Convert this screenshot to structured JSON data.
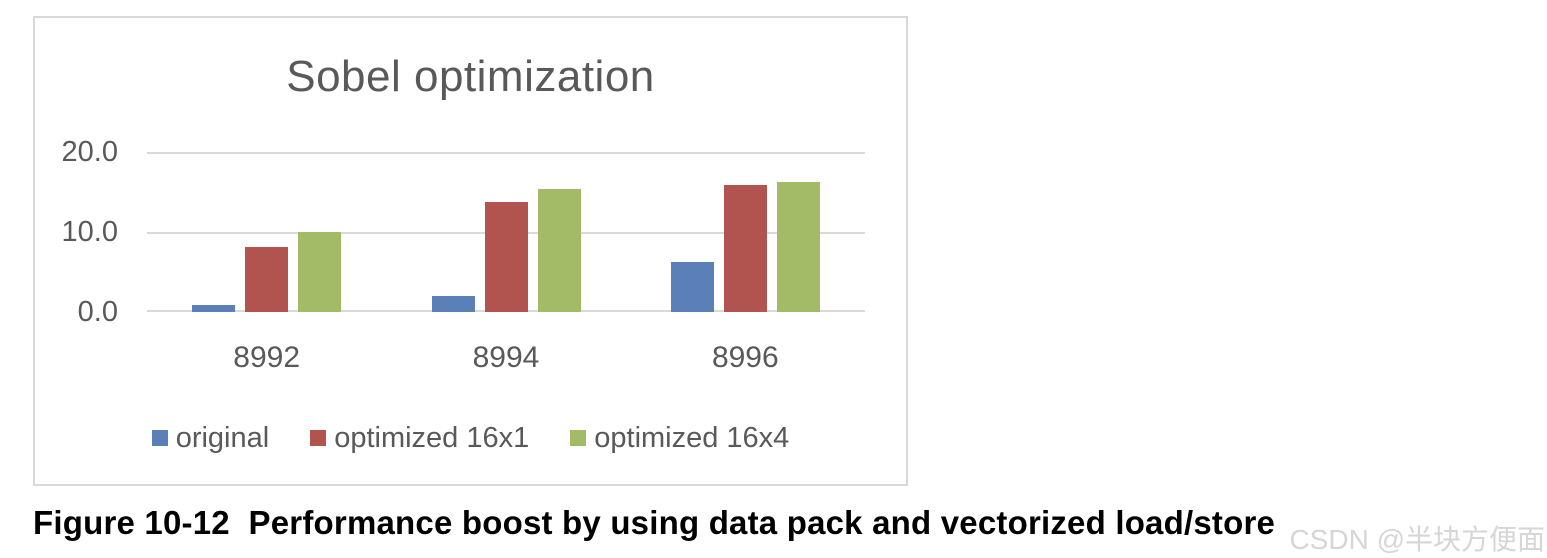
{
  "chart_data": {
    "type": "bar",
    "title": "Sobel optimization",
    "categories": [
      "8992",
      "8994",
      "8996"
    ],
    "series": [
      {
        "name": "original",
        "color": "#5b80b8",
        "values": [
          0.9,
          2.0,
          6.2
        ]
      },
      {
        "name": "optimized 16x1",
        "color": "#b1534e",
        "values": [
          8.1,
          13.8,
          15.9
        ]
      },
      {
        "name": "optimized 16x4",
        "color": "#a3ba66",
        "values": [
          10.0,
          15.4,
          16.3
        ]
      }
    ],
    "ylim": [
      0,
      20
    ],
    "yticks": [
      "20.0",
      "10.0",
      "0.0"
    ],
    "ytick_values": [
      20,
      10,
      0
    ],
    "grid": true,
    "legend_position": "bottom",
    "gridline_color": "#d9d9d9",
    "text_color": "#595959"
  },
  "caption": "Figure 10-12  Performance boost by using data pack and vectorized load/store",
  "watermark": "CSDN @半块方便面"
}
